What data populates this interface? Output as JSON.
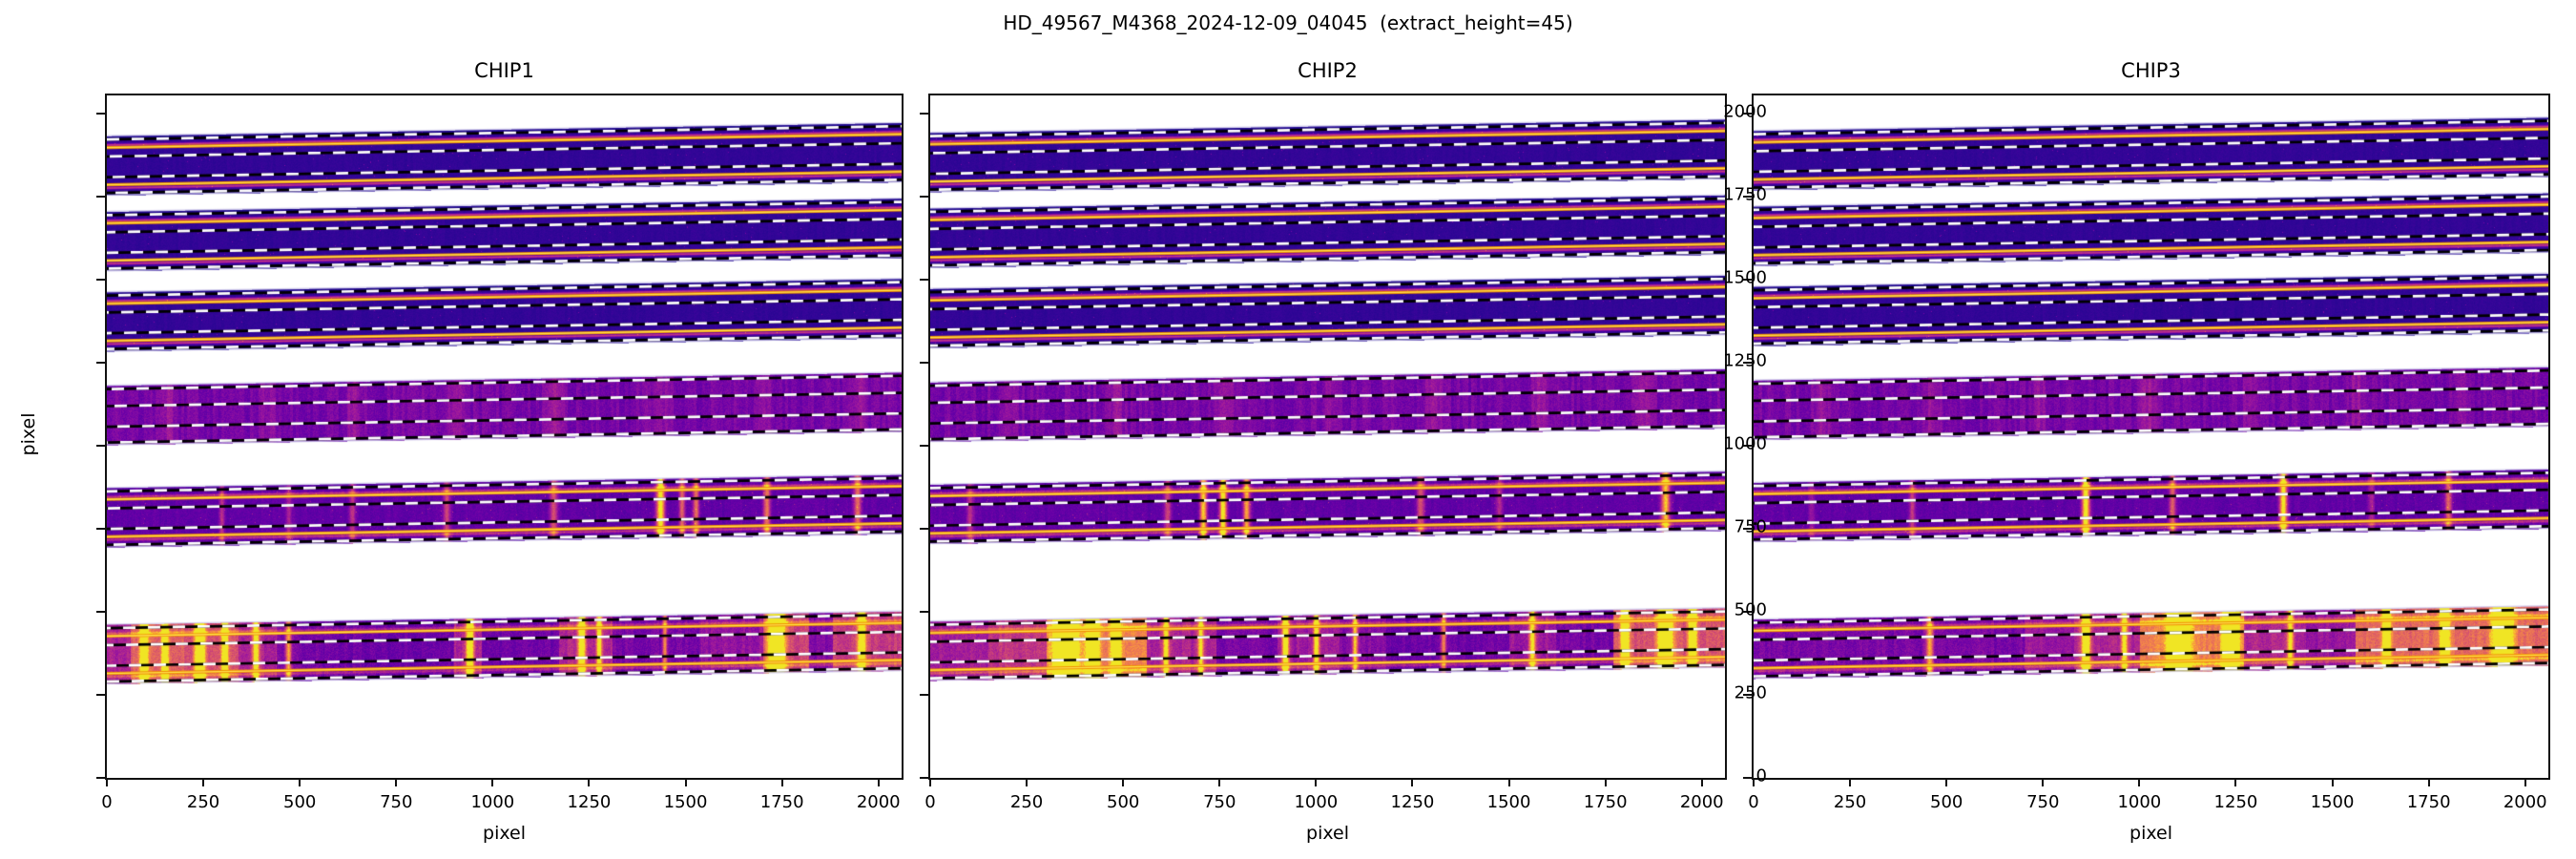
{
  "figure": {
    "title": "HD_49567_M4368_2024-12-09_04045  (extract_height=45)",
    "background": "#ffffff"
  },
  "axes": {
    "xlabel": "pixel",
    "ylabel": "pixel",
    "x_ticks": [
      0,
      250,
      500,
      750,
      1000,
      1250,
      1500,
      1750,
      2000
    ],
    "y_ticks": [
      0,
      250,
      500,
      750,
      1000,
      1250,
      1500,
      1750,
      2000
    ]
  },
  "panels": [
    {
      "name": "CHIP1"
    },
    {
      "name": "CHIP2"
    },
    {
      "name": "CHIP3"
    }
  ],
  "style": {
    "spine": "#111111",
    "text": "#000000",
    "band_edge": "rgba(205,199,234,0.85)",
    "dash_black": "#000000",
    "dash_white": "#ffffff",
    "orange_line": "#ef8f00",
    "orange_core": "#ffe04d",
    "colormap": [
      [
        0.0,
        "#0d0887"
      ],
      [
        0.14,
        "#41049d"
      ],
      [
        0.29,
        "#6a00a8"
      ],
      [
        0.45,
        "#9c179e"
      ],
      [
        0.6,
        "#c53a7e"
      ],
      [
        0.73,
        "#e16462"
      ],
      [
        0.84,
        "#f2844b"
      ],
      [
        0.93,
        "#fca636"
      ],
      [
        1.0,
        "#f0e524"
      ]
    ]
  },
  "chart_data": {
    "type": "heatmap",
    "title": "HD_49567_M4368_2024-12-09_04045  (extract_height=45)",
    "panel_titles": [
      "CHIP1",
      "CHIP2",
      "CHIP3"
    ],
    "xlabel": "pixel",
    "ylabel": "pixel",
    "xlim": [
      0,
      2060
    ],
    "ylim": [
      0,
      2056
    ],
    "x_ticks": [
      0,
      250,
      500,
      750,
      1000,
      1250,
      1500,
      1750,
      2000
    ],
    "y_ticks": [
      0,
      250,
      500,
      750,
      1000,
      1250,
      1500,
      1750,
      2000
    ],
    "order_template": {
      "height": 180,
      "rise": 40,
      "dashed_fracs": [
        0.065,
        0.35,
        0.695,
        0.96
      ],
      "orange_fracs": [
        0.2,
        0.825
      ],
      "glow_fracs": [
        0.15,
        0.87
      ]
    },
    "orders": [
      {
        "name": "order-1",
        "y_bottom_left": 1755,
        "style": "dark",
        "base": 0.1,
        "orange": true
      },
      {
        "name": "order-2",
        "y_bottom_left": 1527,
        "style": "dark",
        "base": 0.1,
        "orange": true
      },
      {
        "name": "order-3",
        "y_bottom_left": 1285,
        "style": "dark",
        "base": 0.1,
        "orange": true
      },
      {
        "name": "order-4",
        "y_bottom_left": 1003,
        "style": "mottle",
        "base": 0.33,
        "orange": false
      },
      {
        "name": "order-5",
        "y_bottom_left": 695,
        "style": "emission",
        "base": 0.26,
        "orange": true
      },
      {
        "name": "order-6",
        "y_bottom_left": 283,
        "style": "bright",
        "base": 0.36,
        "orange": true
      }
    ],
    "chips": [
      {
        "name": "CHIP1",
        "y_offset": 0,
        "seed": 101,
        "faint_cols": [
          [
            160,
            20,
            0.1
          ],
          [
            420,
            24,
            0.08
          ],
          [
            640,
            18,
            0.12
          ],
          [
            900,
            22,
            0.1
          ],
          [
            1160,
            20,
            0.12
          ],
          [
            1430,
            26,
            0.1
          ],
          [
            1700,
            22,
            0.09
          ],
          [
            1950,
            18,
            0.11
          ]
        ],
        "emission_lines": [
          [
            297,
            7,
            0.28
          ],
          [
            471,
            9,
            0.22
          ],
          [
            635,
            8,
            0.32
          ],
          [
            880,
            9,
            0.38
          ],
          [
            1157,
            10,
            0.42
          ],
          [
            1434,
            11,
            0.85
          ],
          [
            1490,
            8,
            0.45
          ],
          [
            1526,
            8,
            0.5
          ],
          [
            1710,
            9,
            0.55
          ],
          [
            1945,
            10,
            0.5
          ]
        ],
        "bright_segments": [
          [
            0,
            60,
            0.5
          ],
          [
            60,
            200,
            0.72
          ],
          [
            200,
            340,
            0.66
          ],
          [
            340,
            440,
            0.5
          ],
          [
            440,
            560,
            0.34
          ],
          [
            560,
            900,
            0.3
          ],
          [
            900,
            970,
            0.5
          ],
          [
            970,
            1170,
            0.3
          ],
          [
            1170,
            1310,
            0.52
          ],
          [
            1310,
            1540,
            0.33
          ],
          [
            1540,
            1700,
            0.42
          ],
          [
            1700,
            1820,
            0.62
          ],
          [
            1820,
            1880,
            0.36
          ],
          [
            1880,
            2060,
            0.6
          ]
        ],
        "bright_lines": [
          [
            95,
            10,
            0.95
          ],
          [
            150,
            8,
            0.85
          ],
          [
            240,
            12,
            0.95
          ],
          [
            305,
            8,
            0.82
          ],
          [
            385,
            8,
            0.75
          ],
          [
            470,
            7,
            0.6
          ],
          [
            940,
            9,
            0.95
          ],
          [
            1230,
            9,
            0.85
          ],
          [
            1275,
            7,
            0.7
          ],
          [
            1445,
            6,
            0.55
          ],
          [
            1735,
            22,
            0.95
          ],
          [
            1955,
            12,
            0.65
          ]
        ]
      },
      {
        "name": "CHIP2",
        "y_offset": 10,
        "seed": 202,
        "faint_cols": [
          [
            200,
            22,
            0.1
          ],
          [
            480,
            20,
            0.1
          ],
          [
            760,
            24,
            0.12
          ],
          [
            1040,
            20,
            0.09
          ],
          [
            1300,
            22,
            0.11
          ],
          [
            1580,
            20,
            0.1
          ],
          [
            1850,
            24,
            0.1
          ]
        ],
        "emission_lines": [
          [
            102,
            9,
            0.32
          ],
          [
            614,
            9,
            0.35
          ],
          [
            707,
            9,
            0.75
          ],
          [
            758,
            9,
            0.88
          ],
          [
            819,
            9,
            0.65
          ],
          [
            1270,
            10,
            0.42
          ],
          [
            1475,
            9,
            0.28
          ],
          [
            1905,
            11,
            0.72
          ]
        ],
        "bright_segments": [
          [
            0,
            150,
            0.48
          ],
          [
            150,
            300,
            0.58
          ],
          [
            300,
            560,
            0.82
          ],
          [
            560,
            740,
            0.5
          ],
          [
            740,
            900,
            0.33
          ],
          [
            900,
            1060,
            0.45
          ],
          [
            1060,
            1180,
            0.38
          ],
          [
            1180,
            1500,
            0.3
          ],
          [
            1500,
            1620,
            0.45
          ],
          [
            1620,
            1770,
            0.33
          ],
          [
            1770,
            2060,
            0.68
          ]
        ],
        "bright_lines": [
          [
            350,
            28,
            0.97
          ],
          [
            420,
            14,
            0.9
          ],
          [
            480,
            10,
            0.85
          ],
          [
            610,
            8,
            0.68
          ],
          [
            700,
            8,
            0.6
          ],
          [
            920,
            9,
            0.8
          ],
          [
            1000,
            8,
            0.7
          ],
          [
            1100,
            7,
            0.6
          ],
          [
            1330,
            7,
            0.5
          ],
          [
            1560,
            9,
            0.6
          ],
          [
            1800,
            10,
            0.88
          ],
          [
            1905,
            18,
            0.95
          ],
          [
            1975,
            10,
            0.85
          ]
        ]
      },
      {
        "name": "CHIP3",
        "y_offset": 16,
        "seed": 303,
        "faint_cols": [
          [
            180,
            22,
            0.1
          ],
          [
            460,
            24,
            0.12
          ],
          [
            740,
            20,
            0.1
          ],
          [
            1020,
            26,
            0.12
          ],
          [
            1290,
            20,
            0.1
          ],
          [
            1560,
            22,
            0.11
          ],
          [
            1830,
            20,
            0.1
          ]
        ],
        "emission_lines": [
          [
            150,
            8,
            0.2
          ],
          [
            410,
            9,
            0.32
          ],
          [
            860,
            10,
            0.88
          ],
          [
            1085,
            9,
            0.45
          ],
          [
            1372,
            10,
            0.8
          ],
          [
            1600,
            8,
            0.25
          ],
          [
            1800,
            10,
            0.45
          ]
        ],
        "bright_segments": [
          [
            0,
            700,
            0.34
          ],
          [
            700,
            830,
            0.44
          ],
          [
            830,
            1000,
            0.5
          ],
          [
            1000,
            1270,
            0.82
          ],
          [
            1270,
            1430,
            0.52
          ],
          [
            1430,
            1560,
            0.44
          ],
          [
            1560,
            2060,
            0.75
          ]
        ],
        "bright_lines": [
          [
            455,
            9,
            0.6
          ],
          [
            860,
            11,
            0.97
          ],
          [
            960,
            8,
            0.65
          ],
          [
            1100,
            26,
            0.9
          ],
          [
            1235,
            18,
            0.92
          ],
          [
            1390,
            8,
            0.6
          ],
          [
            1640,
            10,
            0.78
          ],
          [
            1790,
            12,
            0.72
          ],
          [
            1940,
            24,
            0.85
          ]
        ]
      }
    ]
  }
}
